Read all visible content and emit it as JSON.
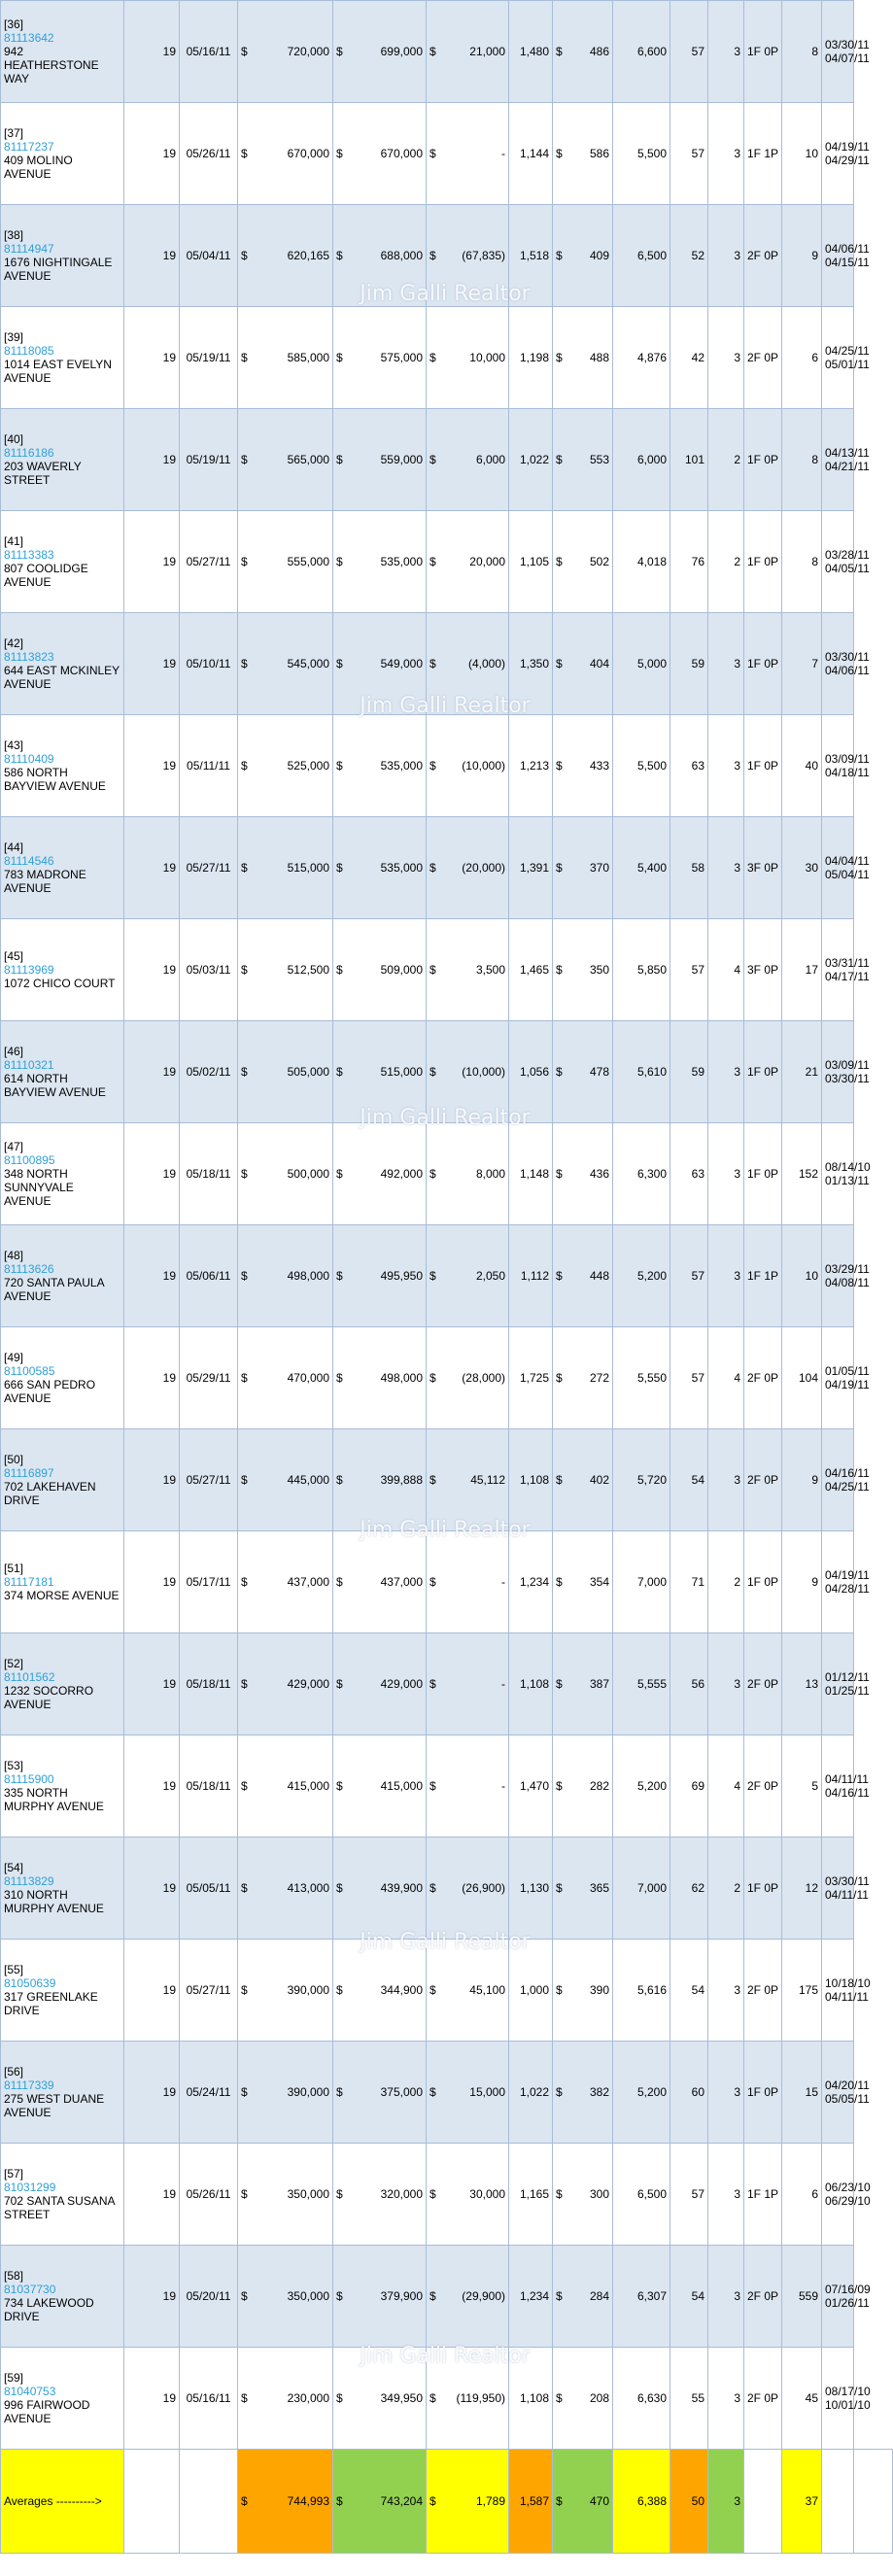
{
  "listings": [
    {
      "idx": "[36]",
      "mls": "81113642",
      "addr": "942 HEATHERSTONE WAY",
      "dom": "19",
      "sold": "05/16/11",
      "list": "720,000",
      "sale": "699,000",
      "diff": "21,000",
      "sqft": "1,480",
      "ppsf": "486",
      "lot": "6,600",
      "age": "57",
      "beds": "3",
      "baths": "1F 0P",
      "cdom": "8",
      "d1": "03/30/11",
      "d2": "04/07/11"
    },
    {
      "idx": "[37]",
      "mls": "81117237",
      "addr": "409 MOLINO AVENUE",
      "dom": "19",
      "sold": "05/26/11",
      "list": "670,000",
      "sale": "670,000",
      "diff": "-",
      "sqft": "1,144",
      "ppsf": "586",
      "lot": "5,500",
      "age": "57",
      "beds": "3",
      "baths": "1F 1P",
      "cdom": "10",
      "d1": "04/19/11",
      "d2": "04/29/11"
    },
    {
      "idx": "[38]",
      "mls": "81114947",
      "addr": "1676 NIGHTINGALE AVENUE",
      "dom": "19",
      "sold": "05/04/11",
      "list": "620,165",
      "sale": "688,000",
      "diff": "(67,835)",
      "sqft": "1,518",
      "ppsf": "409",
      "lot": "6,500",
      "age": "52",
      "beds": "3",
      "baths": "2F 0P",
      "cdom": "9",
      "d1": "04/06/11",
      "d2": "04/15/11"
    },
    {
      "idx": "[39]",
      "mls": "81118085",
      "addr": "1014 EAST EVELYN AVENUE",
      "dom": "19",
      "sold": "05/19/11",
      "list": "585,000",
      "sale": "575,000",
      "diff": "10,000",
      "sqft": "1,198",
      "ppsf": "488",
      "lot": "4,876",
      "age": "42",
      "beds": "3",
      "baths": "2F 0P",
      "cdom": "6",
      "d1": "04/25/11",
      "d2": "05/01/11"
    },
    {
      "idx": "[40]",
      "mls": "81116186",
      "addr": "203 WAVERLY STREET",
      "dom": "19",
      "sold": "05/19/11",
      "list": "565,000",
      "sale": "559,000",
      "diff": "6,000",
      "sqft": "1,022",
      "ppsf": "553",
      "lot": "6,000",
      "age": "101",
      "beds": "2",
      "baths": "1F 0P",
      "cdom": "8",
      "d1": "04/13/11",
      "d2": "04/21/11"
    },
    {
      "idx": "[41]",
      "mls": "81113383",
      "addr": "807 COOLIDGE AVENUE",
      "dom": "19",
      "sold": "05/27/11",
      "list": "555,000",
      "sale": "535,000",
      "diff": "20,000",
      "sqft": "1,105",
      "ppsf": "502",
      "lot": "4,018",
      "age": "76",
      "beds": "2",
      "baths": "1F 0P",
      "cdom": "8",
      "d1": "03/28/11",
      "d2": "04/05/11"
    },
    {
      "idx": "[42]",
      "mls": "81113823",
      "addr": "644 EAST MCKINLEY AVENUE",
      "dom": "19",
      "sold": "05/10/11",
      "list": "545,000",
      "sale": "549,000",
      "diff": "(4,000)",
      "sqft": "1,350",
      "ppsf": "404",
      "lot": "5,000",
      "age": "59",
      "beds": "3",
      "baths": "1F 0P",
      "cdom": "7",
      "d1": "03/30/11",
      "d2": "04/06/11"
    },
    {
      "idx": "[43]",
      "mls": "81110409",
      "addr": "586 NORTH BAYVIEW AVENUE",
      "dom": "19",
      "sold": "05/11/11",
      "list": "525,000",
      "sale": "535,000",
      "diff": "(10,000)",
      "sqft": "1,213",
      "ppsf": "433",
      "lot": "5,500",
      "age": "63",
      "beds": "3",
      "baths": "1F 0P",
      "cdom": "40",
      "d1": "03/09/11",
      "d2": "04/18/11"
    },
    {
      "idx": "[44]",
      "mls": "81114546",
      "addr": "783 MADRONE AVENUE",
      "dom": "19",
      "sold": "05/27/11",
      "list": "515,000",
      "sale": "535,000",
      "diff": "(20,000)",
      "sqft": "1,391",
      "ppsf": "370",
      "lot": "5,400",
      "age": "58",
      "beds": "3",
      "baths": "3F 0P",
      "cdom": "30",
      "d1": "04/04/11",
      "d2": "05/04/11"
    },
    {
      "idx": "[45]",
      "mls": "81113969",
      "addr": "1072 CHICO COURT",
      "dom": "19",
      "sold": "05/03/11",
      "list": "512,500",
      "sale": "509,000",
      "diff": "3,500",
      "sqft": "1,465",
      "ppsf": "350",
      "lot": "5,850",
      "age": "57",
      "beds": "4",
      "baths": "3F 0P",
      "cdom": "17",
      "d1": "03/31/11",
      "d2": "04/17/11"
    },
    {
      "idx": "[46]",
      "mls": "81110321",
      "addr": "614 NORTH BAYVIEW AVENUE",
      "dom": "19",
      "sold": "05/02/11",
      "list": "505,000",
      "sale": "515,000",
      "diff": "(10,000)",
      "sqft": "1,056",
      "ppsf": "478",
      "lot": "5,610",
      "age": "59",
      "beds": "3",
      "baths": "1F 0P",
      "cdom": "21",
      "d1": "03/09/11",
      "d2": "03/30/11"
    },
    {
      "idx": "[47]",
      "mls": "81100895",
      "addr": "348 NORTH SUNNYVALE AVENUE",
      "dom": "19",
      "sold": "05/18/11",
      "list": "500,000",
      "sale": "492,000",
      "diff": "8,000",
      "sqft": "1,148",
      "ppsf": "436",
      "lot": "6,300",
      "age": "63",
      "beds": "3",
      "baths": "1F 0P",
      "cdom": "152",
      "d1": "08/14/10",
      "d2": "01/13/11"
    },
    {
      "idx": "[48]",
      "mls": "81113626",
      "addr": "720 SANTA PAULA AVENUE",
      "dom": "19",
      "sold": "05/06/11",
      "list": "498,000",
      "sale": "495,950",
      "diff": "2,050",
      "sqft": "1,112",
      "ppsf": "448",
      "lot": "5,200",
      "age": "57",
      "beds": "3",
      "baths": "1F 1P",
      "cdom": "10",
      "d1": "03/29/11",
      "d2": "04/08/11"
    },
    {
      "idx": "[49]",
      "mls": "81100585",
      "addr": "666 SAN PEDRO AVENUE",
      "dom": "19",
      "sold": "05/29/11",
      "list": "470,000",
      "sale": "498,000",
      "diff": "(28,000)",
      "sqft": "1,725",
      "ppsf": "272",
      "lot": "5,550",
      "age": "57",
      "beds": "4",
      "baths": "2F 0P",
      "cdom": "104",
      "d1": "01/05/11",
      "d2": "04/19/11"
    },
    {
      "idx": "[50]",
      "mls": "81116897",
      "addr": "702 LAKEHAVEN DRIVE",
      "dom": "19",
      "sold": "05/27/11",
      "list": "445,000",
      "sale": "399,888",
      "diff": "45,112",
      "sqft": "1,108",
      "ppsf": "402",
      "lot": "5,720",
      "age": "54",
      "beds": "3",
      "baths": "2F 0P",
      "cdom": "9",
      "d1": "04/16/11",
      "d2": "04/25/11"
    },
    {
      "idx": "[51]",
      "mls": "81117181",
      "addr": "374 MORSE AVENUE",
      "dom": "19",
      "sold": "05/17/11",
      "list": "437,000",
      "sale": "437,000",
      "diff": "-",
      "sqft": "1,234",
      "ppsf": "354",
      "lot": "7,000",
      "age": "71",
      "beds": "2",
      "baths": "1F 0P",
      "cdom": "9",
      "d1": "04/19/11",
      "d2": "04/28/11"
    },
    {
      "idx": "[52]",
      "mls": "81101562",
      "addr": "1232 SOCORRO AVENUE",
      "dom": "19",
      "sold": "05/18/11",
      "list": "429,000",
      "sale": "429,000",
      "diff": "-",
      "sqft": "1,108",
      "ppsf": "387",
      "lot": "5,555",
      "age": "56",
      "beds": "3",
      "baths": "2F 0P",
      "cdom": "13",
      "d1": "01/12/11",
      "d2": "01/25/11"
    },
    {
      "idx": "[53]",
      "mls": "81115900",
      "addr": "335 NORTH MURPHY AVENUE",
      "dom": "19",
      "sold": "05/18/11",
      "list": "415,000",
      "sale": "415,000",
      "diff": "-",
      "sqft": "1,470",
      "ppsf": "282",
      "lot": "5,200",
      "age": "69",
      "beds": "4",
      "baths": "2F 0P",
      "cdom": "5",
      "d1": "04/11/11",
      "d2": "04/16/11"
    },
    {
      "idx": "[54]",
      "mls": "81113829",
      "addr": "310 NORTH MURPHY AVENUE",
      "dom": "19",
      "sold": "05/05/11",
      "list": "413,000",
      "sale": "439,900",
      "diff": "(26,900)",
      "sqft": "1,130",
      "ppsf": "365",
      "lot": "7,000",
      "age": "62",
      "beds": "2",
      "baths": "1F 0P",
      "cdom": "12",
      "d1": "03/30/11",
      "d2": "04/11/11"
    },
    {
      "idx": "[55]",
      "mls": "81050639",
      "addr": "317 GREENLAKE DRIVE",
      "dom": "19",
      "sold": "05/27/11",
      "list": "390,000",
      "sale": "344,900",
      "diff": "45,100",
      "sqft": "1,000",
      "ppsf": "390",
      "lot": "5,616",
      "age": "54",
      "beds": "3",
      "baths": "2F 0P",
      "cdom": "175",
      "d1": "10/18/10",
      "d2": "04/11/11"
    },
    {
      "idx": "[56]",
      "mls": "81117339",
      "addr": "275 WEST DUANE AVENUE",
      "dom": "19",
      "sold": "05/24/11",
      "list": "390,000",
      "sale": "375,000",
      "diff": "15,000",
      "sqft": "1,022",
      "ppsf": "382",
      "lot": "5,200",
      "age": "60",
      "beds": "3",
      "baths": "1F 0P",
      "cdom": "15",
      "d1": "04/20/11",
      "d2": "05/05/11"
    },
    {
      "idx": "[57]",
      "mls": "81031299",
      "addr": "702 SANTA SUSANA STREET",
      "dom": "19",
      "sold": "05/26/11",
      "list": "350,000",
      "sale": "320,000",
      "diff": "30,000",
      "sqft": "1,165",
      "ppsf": "300",
      "lot": "6,500",
      "age": "57",
      "beds": "3",
      "baths": "1F 1P",
      "cdom": "6",
      "d1": "06/23/10",
      "d2": "06/29/10"
    },
    {
      "idx": "[58]",
      "mls": "81037730",
      "addr": "734 LAKEWOOD DRIVE",
      "dom": "19",
      "sold": "05/20/11",
      "list": "350,000",
      "sale": "379,900",
      "diff": "(29,900)",
      "sqft": "1,234",
      "ppsf": "284",
      "lot": "6,307",
      "age": "54",
      "beds": "3",
      "baths": "2F 0P",
      "cdom": "559",
      "d1": "07/16/09",
      "d2": "01/26/11"
    },
    {
      "idx": "[59]",
      "mls": "81040753",
      "addr": "996 FAIRWOOD AVENUE",
      "dom": "19",
      "sold": "05/16/11",
      "list": "230,000",
      "sale": "349,950",
      "diff": "(119,950)",
      "sqft": "1,108",
      "ppsf": "208",
      "lot": "6,630",
      "age": "55",
      "beds": "3",
      "baths": "2F 0P",
      "cdom": "45",
      "d1": "08/17/10",
      "d2": "10/01/10"
    }
  ],
  "currency_symbol": "$",
  "averages": {
    "label": "Averages ---------->",
    "list": "744,993",
    "sale": "743,204",
    "diff": "1,789",
    "sqft": "1,587",
    "ppsf": "470",
    "lot": "6,388",
    "age": "50",
    "beds": "3",
    "cdom": "37"
  },
  "watermark": "Jim Galli Realtor"
}
